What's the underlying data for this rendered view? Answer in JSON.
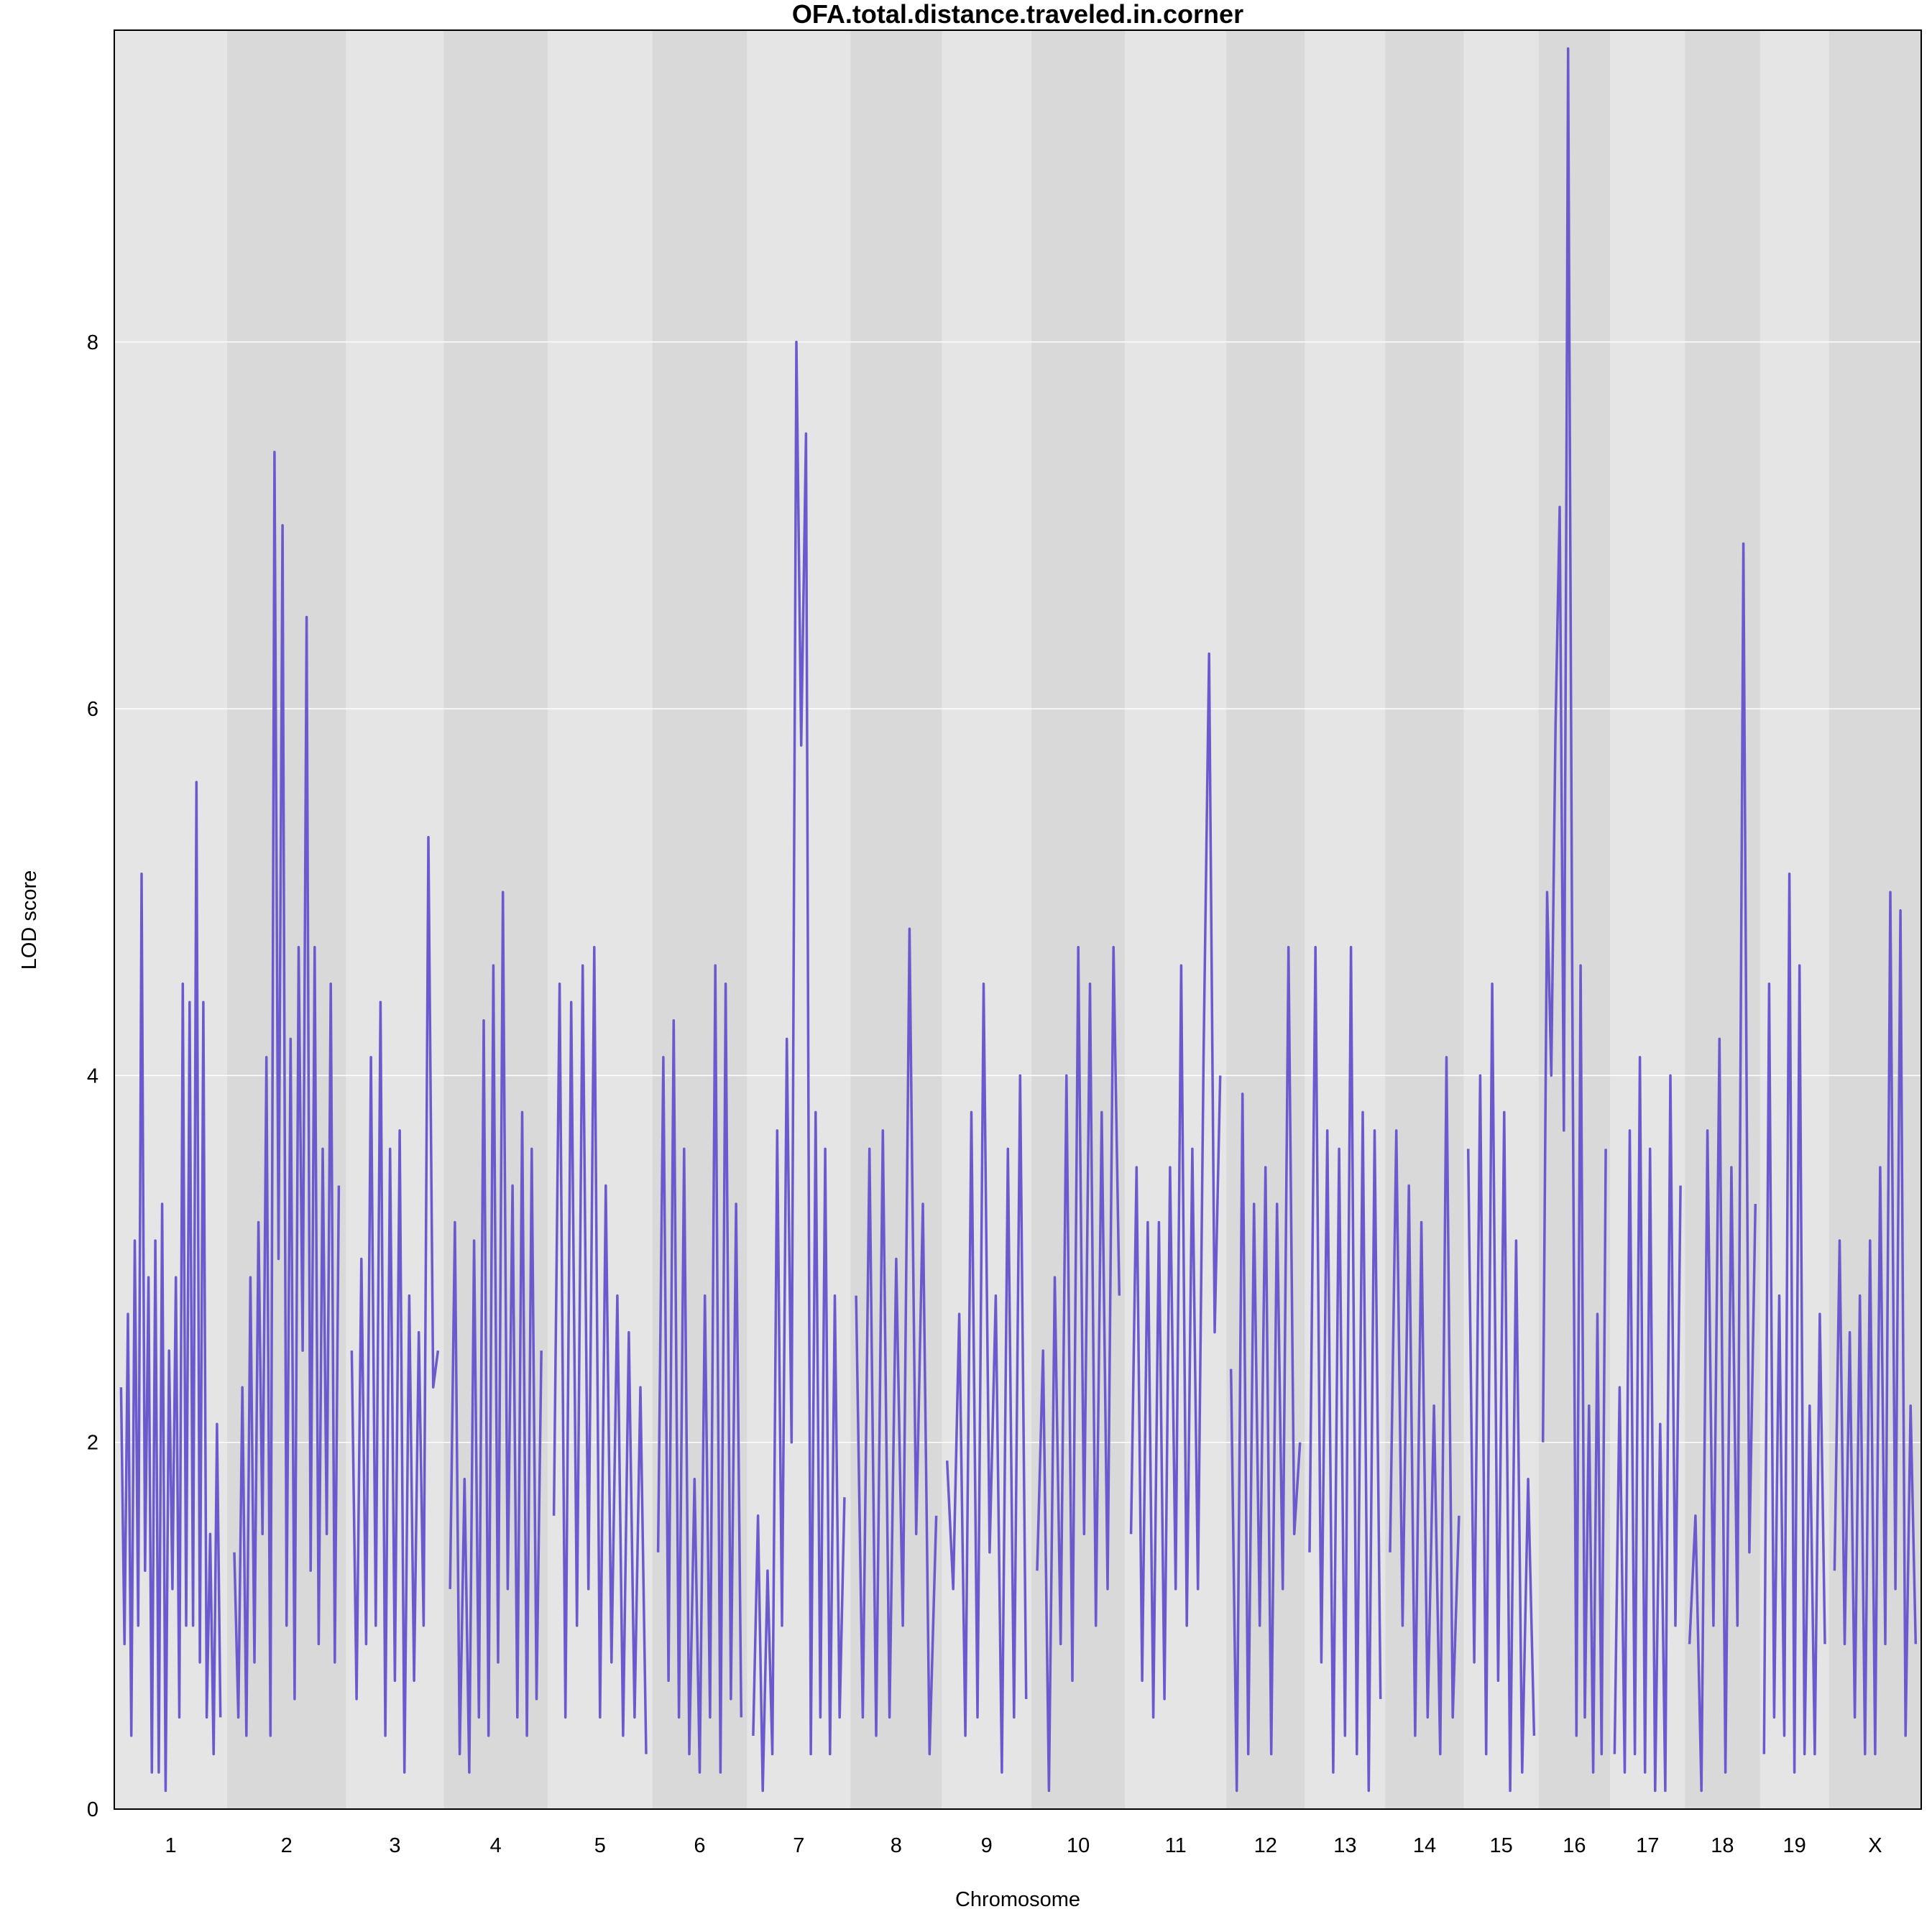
{
  "chart_data": {
    "type": "line",
    "title": "OFA.total.distance.traveled.in.corner",
    "xlabel": "Chromosome",
    "ylabel": "LOD score",
    "ylim": [
      0,
      9.7
    ],
    "yticks": [
      0,
      2,
      4,
      6,
      8
    ],
    "grid": true,
    "colors": {
      "line": "#6A5ACD",
      "band_light": "#E5E5E5",
      "band_dark": "#D9D9D9",
      "grid": "#FFFFFF"
    },
    "chromosomes": [
      {
        "name": "1",
        "length": 98,
        "lod": [
          2.3,
          0.9,
          2.7,
          0.4,
          3.1,
          1.0,
          5.1,
          1.3,
          2.9,
          0.2,
          3.1,
          0.2,
          3.3,
          0.1,
          2.5,
          1.2,
          2.9,
          0.5,
          4.5,
          1.0,
          4.4,
          1.0,
          5.6,
          0.8,
          4.4,
          0.5,
          1.5,
          0.3,
          2.1,
          0.5
        ]
      },
      {
        "name": "2",
        "length": 103,
        "lod": [
          1.4,
          0.5,
          2.3,
          0.4,
          2.9,
          0.8,
          3.2,
          1.5,
          4.1,
          0.4,
          7.4,
          3.0,
          7.0,
          1.0,
          4.2,
          0.6,
          4.7,
          2.5,
          6.5,
          1.3,
          4.7,
          0.9,
          3.6,
          1.5,
          4.5,
          0.8,
          3.4
        ]
      },
      {
        "name": "3",
        "length": 85,
        "lod": [
          2.5,
          0.6,
          3.0,
          0.9,
          4.1,
          1.0,
          4.4,
          0.4,
          3.6,
          0.7,
          3.7,
          0.2,
          2.8,
          0.7,
          2.6,
          1.0,
          5.3,
          2.3,
          2.5
        ]
      },
      {
        "name": "4",
        "length": 90,
        "lod": [
          1.2,
          3.2,
          0.3,
          1.8,
          0.2,
          3.1,
          0.5,
          4.3,
          0.4,
          4.6,
          0.8,
          5.0,
          1.2,
          3.4,
          0.5,
          3.8,
          0.4,
          3.6,
          0.6,
          2.5
        ]
      },
      {
        "name": "5",
        "length": 91,
        "lod": [
          1.6,
          4.5,
          0.5,
          4.4,
          1.0,
          4.6,
          1.2,
          4.7,
          0.5,
          3.4,
          0.8,
          2.8,
          0.4,
          2.6,
          0.5,
          2.3,
          0.3
        ]
      },
      {
        "name": "6",
        "length": 82,
        "lod": [
          1.4,
          4.1,
          0.7,
          4.3,
          0.5,
          3.6,
          0.3,
          1.8,
          0.2,
          2.8,
          0.5,
          4.6,
          0.2,
          4.5,
          0.6,
          3.3,
          0.5
        ]
      },
      {
        "name": "7",
        "length": 90,
        "lod": [
          0.4,
          1.6,
          0.1,
          1.3,
          0.3,
          3.7,
          1.0,
          4.2,
          2.0,
          8.0,
          5.8,
          7.5,
          0.3,
          3.8,
          0.5,
          3.6,
          0.3,
          2.8,
          0.5,
          1.7
        ]
      },
      {
        "name": "8",
        "length": 79,
        "lod": [
          2.8,
          0.5,
          3.6,
          0.4,
          3.7,
          0.5,
          3.0,
          1.0,
          4.8,
          1.5,
          3.3,
          0.3,
          1.6
        ]
      },
      {
        "name": "9",
        "length": 78,
        "lod": [
          1.9,
          1.2,
          2.7,
          0.4,
          3.8,
          0.5,
          4.5,
          1.4,
          2.8,
          0.2,
          3.6,
          0.5,
          4.0,
          0.6
        ]
      },
      {
        "name": "10",
        "length": 81,
        "lod": [
          1.3,
          2.5,
          0.1,
          2.9,
          0.9,
          4.0,
          0.7,
          4.7,
          1.5,
          4.5,
          1.0,
          3.8,
          1.2,
          4.7,
          2.8
        ]
      },
      {
        "name": "11",
        "length": 88,
        "lod": [
          1.5,
          3.5,
          0.7,
          3.2,
          0.5,
          3.2,
          0.6,
          3.5,
          1.2,
          4.6,
          1.0,
          3.6,
          1.2,
          4.1,
          6.3,
          2.6,
          4.0
        ]
      },
      {
        "name": "12",
        "length": 68,
        "lod": [
          2.4,
          0.1,
          3.9,
          0.3,
          3.3,
          1.0,
          3.5,
          0.3,
          3.3,
          1.2,
          4.7,
          1.5,
          2.0
        ]
      },
      {
        "name": "13",
        "length": 70,
        "lod": [
          1.4,
          4.7,
          0.8,
          3.7,
          0.2,
          3.6,
          0.4,
          4.7,
          0.3,
          3.8,
          0.1,
          3.7,
          0.6
        ]
      },
      {
        "name": "14",
        "length": 68,
        "lod": [
          1.4,
          3.7,
          1.0,
          3.4,
          0.4,
          3.2,
          0.5,
          2.2,
          0.3,
          4.1,
          0.5,
          1.6
        ]
      },
      {
        "name": "15",
        "length": 65,
        "lod": [
          3.6,
          0.8,
          4.0,
          0.3,
          4.5,
          0.7,
          3.8,
          0.1,
          3.1,
          0.2,
          1.8,
          0.4
        ]
      },
      {
        "name": "16",
        "length": 62,
        "lod": [
          2.0,
          5.0,
          4.0,
          5.9,
          7.1,
          3.7,
          9.6,
          4.5,
          0.4,
          4.6,
          0.5,
          2.2,
          0.2,
          2.7,
          0.3,
          3.6
        ]
      },
      {
        "name": "17",
        "length": 65,
        "lod": [
          0.3,
          2.3,
          0.2,
          3.7,
          0.3,
          4.1,
          0.2,
          3.6,
          0.1,
          2.1,
          0.1,
          4.0,
          1.0,
          3.4
        ]
      },
      {
        "name": "18",
        "length": 65,
        "lod": [
          0.9,
          1.6,
          0.1,
          3.7,
          1.0,
          4.2,
          0.2,
          3.5,
          1.0,
          6.9,
          1.4,
          3.3
        ]
      },
      {
        "name": "19",
        "length": 60,
        "lod": [
          0.3,
          4.5,
          0.5,
          2.8,
          0.4,
          5.1,
          0.2,
          4.6,
          0.3,
          2.2,
          0.3,
          2.7,
          0.9
        ]
      },
      {
        "name": "X",
        "length": 80,
        "lod": [
          1.3,
          3.1,
          0.9,
          2.6,
          0.5,
          2.8,
          0.3,
          3.1,
          0.3,
          3.5,
          0.9,
          5.0,
          1.2,
          4.9,
          0.4,
          2.2,
          0.9
        ]
      }
    ]
  }
}
